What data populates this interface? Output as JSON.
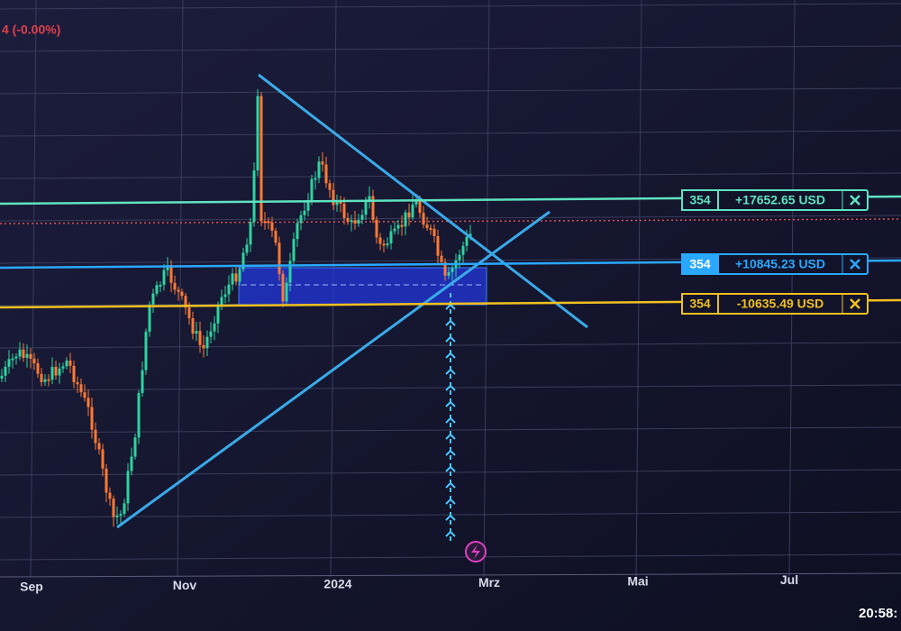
{
  "header": {
    "change": "4 (-0.00%)"
  },
  "orders": [
    {
      "quantity": "354",
      "pnl": "+17652.65 USD",
      "color": "#5fe3c0"
    },
    {
      "quantity": "354",
      "pnl": "+10845.23 USD",
      "color": "#2aa8ff"
    },
    {
      "quantity": "354",
      "pnl": "-10635.49 USD",
      "color": "#f0c020"
    }
  ],
  "x_axis": {
    "labels": [
      "Sep",
      "Nov",
      "2024",
      "Mrz",
      "Mai",
      "Jul"
    ]
  },
  "clock": "20:58:"
}
